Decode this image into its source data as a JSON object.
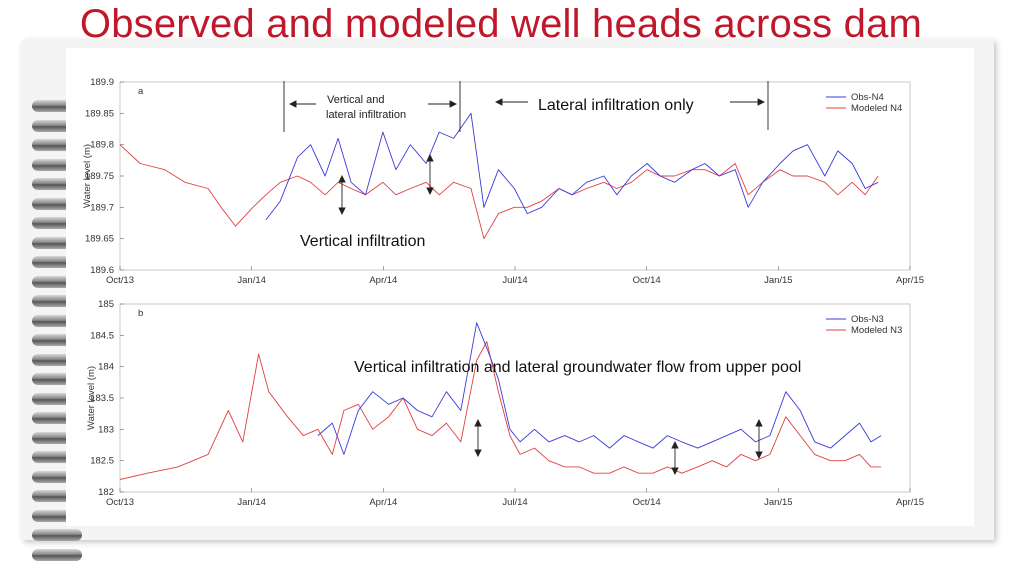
{
  "slide": {
    "title": "Observed and modeled well heads across dam"
  },
  "chart_data": [
    {
      "type": "line",
      "panel_label": "a",
      "ylabel": "Water level (m)",
      "ylim": [
        189.6,
        189.9
      ],
      "yticks": [
        "189.6",
        "189.65",
        "189.7",
        "189.75",
        "189.8",
        "189.85",
        "189.9"
      ],
      "xlim": [
        "2013-10-01",
        "2015-04-01"
      ],
      "xticks": [
        "Oct/13",
        "Jan/14",
        "Apr/14",
        "Jul/14",
        "Oct/14",
        "Jan/15",
        "Apr/15"
      ],
      "legend_position": "top-right",
      "series": [
        {
          "name": "Obs-N4",
          "color": "#3a3adc",
          "x": [
            "2014-01-10",
            "2014-01-20",
            "2014-02-01",
            "2014-02-10",
            "2014-02-20",
            "2014-03-01",
            "2014-03-10",
            "2014-03-20",
            "2014-04-01",
            "2014-04-10",
            "2014-04-20",
            "2014-05-01",
            "2014-05-10",
            "2014-05-20",
            "2014-06-01",
            "2014-06-10",
            "2014-06-20",
            "2014-07-01",
            "2014-07-10",
            "2014-07-20",
            "2014-08-01",
            "2014-08-10",
            "2014-08-20",
            "2014-09-01",
            "2014-09-10",
            "2014-09-20",
            "2014-10-01",
            "2014-10-10",
            "2014-10-20",
            "2014-11-01",
            "2014-11-10",
            "2014-11-20",
            "2014-12-01",
            "2014-12-10",
            "2014-12-20",
            "2015-01-01",
            "2015-01-10",
            "2015-01-20",
            "2015-02-01",
            "2015-02-10",
            "2015-02-20",
            "2015-03-01",
            "2015-03-10"
          ],
          "y": [
            189.68,
            189.71,
            189.78,
            189.8,
            189.75,
            189.81,
            189.74,
            189.72,
            189.82,
            189.76,
            189.8,
            189.77,
            189.82,
            189.81,
            189.85,
            189.7,
            189.76,
            189.73,
            189.69,
            189.7,
            189.73,
            189.72,
            189.74,
            189.75,
            189.72,
            189.75,
            189.77,
            189.75,
            189.74,
            189.76,
            189.77,
            189.75,
            189.76,
            189.7,
            189.74,
            189.77,
            189.79,
            189.8,
            189.75,
            189.79,
            189.77,
            189.73,
            189.74
          ]
        },
        {
          "name": "Modeled N4",
          "color": "#e04040",
          "x": [
            "2013-10-01",
            "2013-10-15",
            "2013-11-01",
            "2013-11-15",
            "2013-12-01",
            "2013-12-10",
            "2013-12-20",
            "2014-01-01",
            "2014-01-10",
            "2014-01-20",
            "2014-02-01",
            "2014-02-10",
            "2014-02-20",
            "2014-03-01",
            "2014-03-10",
            "2014-03-20",
            "2014-04-01",
            "2014-04-10",
            "2014-04-20",
            "2014-05-01",
            "2014-05-10",
            "2014-05-20",
            "2014-06-01",
            "2014-06-10",
            "2014-06-20",
            "2014-07-01",
            "2014-07-10",
            "2014-07-20",
            "2014-08-01",
            "2014-08-10",
            "2014-08-20",
            "2014-09-01",
            "2014-09-10",
            "2014-09-20",
            "2014-10-01",
            "2014-10-10",
            "2014-10-20",
            "2014-11-01",
            "2014-11-10",
            "2014-11-20",
            "2014-12-01",
            "2014-12-10",
            "2014-12-20",
            "2015-01-01",
            "2015-01-10",
            "2015-01-20",
            "2015-02-01",
            "2015-02-10",
            "2015-02-20",
            "2015-03-01",
            "2015-03-10"
          ],
          "y": [
            189.8,
            189.77,
            189.76,
            189.74,
            189.73,
            189.7,
            189.67,
            189.7,
            189.72,
            189.74,
            189.75,
            189.74,
            189.72,
            189.74,
            189.73,
            189.72,
            189.74,
            189.72,
            189.73,
            189.74,
            189.72,
            189.74,
            189.73,
            189.65,
            189.69,
            189.7,
            189.7,
            189.71,
            189.73,
            189.72,
            189.73,
            189.74,
            189.73,
            189.74,
            189.76,
            189.75,
            189.75,
            189.76,
            189.76,
            189.75,
            189.77,
            189.72,
            189.74,
            189.76,
            189.75,
            189.75,
            189.74,
            189.72,
            189.74,
            189.72,
            189.75
          ]
        }
      ],
      "annotations": {
        "vertical_and_lateral_line1": "Vertical and",
        "vertical_and_lateral_line2": "lateral infiltration",
        "lateral_only": "Lateral infiltration only",
        "vertical_only": "Vertical infiltration"
      }
    },
    {
      "type": "line",
      "panel_label": "b",
      "ylabel": "Water level (m)",
      "ylim": [
        182,
        185
      ],
      "yticks": [
        "182",
        "182.5",
        "183",
        "183.5",
        "184",
        "184.5",
        "185"
      ],
      "xlim": [
        "2013-10-01",
        "2015-04-01"
      ],
      "xticks": [
        "Oct/13",
        "Jan/14",
        "Apr/14",
        "Jul/14",
        "Oct/14",
        "Jan/15",
        "Apr/15"
      ],
      "legend_position": "top-right",
      "series": [
        {
          "name": "Obs-N3",
          "color": "#3a3adc",
          "x": [
            "2014-02-15",
            "2014-02-25",
            "2014-03-05",
            "2014-03-15",
            "2014-03-25",
            "2014-04-05",
            "2014-04-15",
            "2014-04-25",
            "2014-05-05",
            "2014-05-15",
            "2014-05-25",
            "2014-06-05",
            "2014-06-12",
            "2014-06-20",
            "2014-06-28",
            "2014-07-05",
            "2014-07-15",
            "2014-07-25",
            "2014-08-05",
            "2014-08-15",
            "2014-08-25",
            "2014-09-05",
            "2014-09-15",
            "2014-09-25",
            "2014-10-05",
            "2014-10-15",
            "2014-10-25",
            "2014-11-05",
            "2014-11-15",
            "2014-11-25",
            "2014-12-05",
            "2014-12-15",
            "2014-12-25",
            "2015-01-05",
            "2015-01-15",
            "2015-01-25",
            "2015-02-05",
            "2015-02-15",
            "2015-02-25",
            "2015-03-05",
            "2015-03-12"
          ],
          "y": [
            182.9,
            183.1,
            182.6,
            183.3,
            183.6,
            183.4,
            183.5,
            183.3,
            183.2,
            183.6,
            183.3,
            184.7,
            184.3,
            183.8,
            183.0,
            182.8,
            183.0,
            182.8,
            182.9,
            182.8,
            182.9,
            182.7,
            182.9,
            182.8,
            182.7,
            182.9,
            182.8,
            182.7,
            182.8,
            182.9,
            183.0,
            182.8,
            182.9,
            183.6,
            183.3,
            182.8,
            182.7,
            182.9,
            183.1,
            182.8,
            182.9
          ]
        },
        {
          "name": "Modeled N3",
          "color": "#e04040",
          "x": [
            "2013-10-01",
            "2013-10-20",
            "2013-11-10",
            "2013-12-01",
            "2013-12-15",
            "2013-12-25",
            "2014-01-05",
            "2014-01-12",
            "2014-01-25",
            "2014-02-05",
            "2014-02-15",
            "2014-02-25",
            "2014-03-05",
            "2014-03-15",
            "2014-03-25",
            "2014-04-05",
            "2014-04-15",
            "2014-04-25",
            "2014-05-05",
            "2014-05-15",
            "2014-05-25",
            "2014-06-05",
            "2014-06-12",
            "2014-06-20",
            "2014-06-28",
            "2014-07-05",
            "2014-07-15",
            "2014-07-25",
            "2014-08-05",
            "2014-08-15",
            "2014-08-25",
            "2014-09-05",
            "2014-09-15",
            "2014-09-25",
            "2014-10-05",
            "2014-10-15",
            "2014-10-25",
            "2014-11-05",
            "2014-11-15",
            "2014-11-25",
            "2014-12-05",
            "2014-12-15",
            "2014-12-25",
            "2015-01-05",
            "2015-01-15",
            "2015-01-25",
            "2015-02-05",
            "2015-02-15",
            "2015-02-25",
            "2015-03-05",
            "2015-03-12"
          ],
          "y": [
            182.2,
            182.3,
            182.4,
            182.6,
            183.3,
            182.8,
            184.2,
            183.6,
            183.2,
            182.9,
            183.0,
            182.6,
            183.3,
            183.4,
            183.0,
            183.2,
            183.5,
            183.0,
            182.9,
            183.1,
            182.8,
            184.1,
            184.4,
            183.6,
            182.9,
            182.6,
            182.7,
            182.5,
            182.4,
            182.4,
            182.3,
            182.3,
            182.4,
            182.3,
            182.3,
            182.4,
            182.3,
            182.4,
            182.5,
            182.4,
            182.6,
            182.5,
            182.6,
            183.2,
            182.9,
            182.6,
            182.5,
            182.5,
            182.6,
            182.4,
            182.4
          ]
        }
      ],
      "annotations": {
        "lateral_flow": "Vertical infiltration and lateral groundwater flow from upper pool"
      }
    }
  ]
}
